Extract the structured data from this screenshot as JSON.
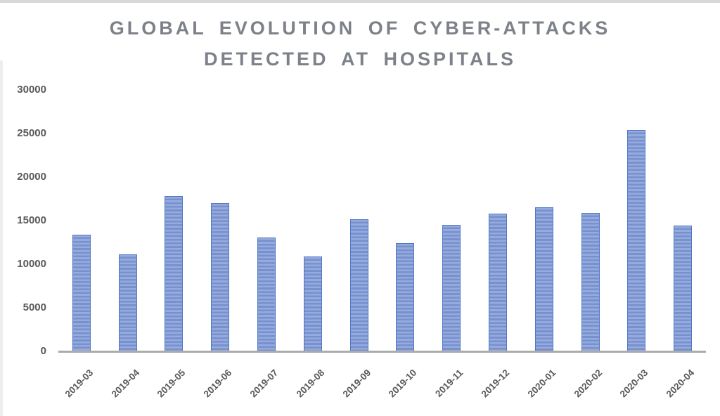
{
  "chart_data": {
    "type": "bar",
    "title": "GLOBAL EVOLUTION OF CYBER-ATTACKS DETECTED AT HOSPITALS",
    "title_line1": "GLOBAL EVOLUTION OF CYBER-ATTACKS",
    "title_line2": "DETECTED AT HOSPITALS",
    "categories": [
      "2019-03",
      "2019-04",
      "2019-05",
      "2019-06",
      "2019-07",
      "2019-08",
      "2019-09",
      "2019-10",
      "2019-11",
      "2019-12",
      "2020-01",
      "2020-02",
      "2020-03",
      "2020-04"
    ],
    "values": [
      13400,
      11100,
      17800,
      17000,
      13100,
      10900,
      15200,
      12400,
      14500,
      15800,
      16500,
      15900,
      25400,
      14400
    ],
    "xlabel": "",
    "ylabel": "",
    "ylim": [
      0,
      30000
    ],
    "ytick_step": 5000,
    "yticks": [
      0,
      5000,
      10000,
      15000,
      20000,
      25000,
      30000
    ],
    "grid": false,
    "legend": "none",
    "colors": {
      "bar_fill_light": "#96abdc",
      "bar_fill_dark": "#7791d0",
      "bar_border": "#4f77c6",
      "axis_line": "#ababab",
      "tick_label": "#595959",
      "title": "#7d8189"
    }
  }
}
